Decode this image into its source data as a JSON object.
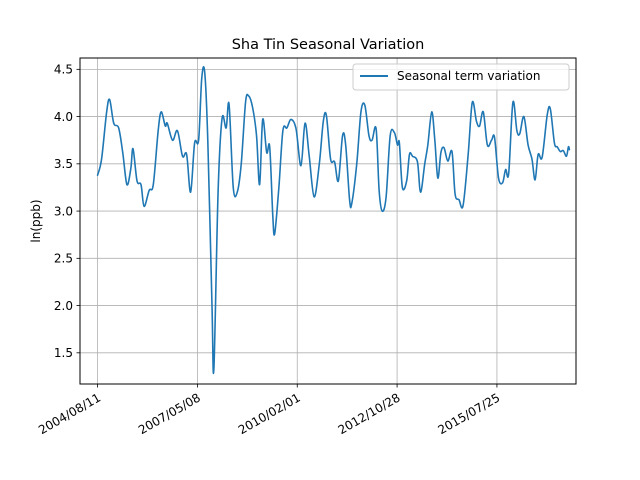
{
  "chart_data": {
    "type": "line",
    "title": "Sha Tin Seasonal Variation",
    "xlabel": "",
    "ylabel": "ln(ppb)",
    "xlim": [
      "2004/02/17",
      "2017/09/24"
    ],
    "ylim": [
      1.17,
      4.62
    ],
    "x_ticks": [
      "2004/08/11",
      "2007/05/08",
      "2010/02/01",
      "2012/10/28",
      "2015/07/25"
    ],
    "y_ticks": [
      1.5,
      2.0,
      2.5,
      3.0,
      3.5,
      4.0,
      4.5
    ],
    "y_tick_labels": [
      "1.5",
      "2.0",
      "2.5",
      "3.0",
      "3.5",
      "4.0",
      "4.5"
    ],
    "grid": true,
    "legend_position": "top-right",
    "colors": {
      "series": "#1f77b4",
      "grid": "#b0b0b0"
    },
    "series": [
      {
        "name": "Seasonal term variation",
        "points": [
          [
            "2004/08/11",
            3.38
          ],
          [
            "2004/09/20",
            3.55
          ],
          [
            "2004/11/10",
            4.05
          ],
          [
            "2004/12/10",
            4.18
          ],
          [
            "2005/01/20",
            3.93
          ],
          [
            "2005/03/10",
            3.88
          ],
          [
            "2005/04/20",
            3.62
          ],
          [
            "2005/06/01",
            3.28
          ],
          [
            "2005/07/10",
            3.45
          ],
          [
            "2005/08/01",
            3.66
          ],
          [
            "2005/09/10",
            3.32
          ],
          [
            "2005/10/20",
            3.28
          ],
          [
            "2005/11/20",
            3.05
          ],
          [
            "2006/01/10",
            3.22
          ],
          [
            "2006/02/20",
            3.28
          ],
          [
            "2006/04/10",
            3.85
          ],
          [
            "2006/05/10",
            4.05
          ],
          [
            "2006/06/20",
            3.9
          ],
          [
            "2006/07/10",
            3.93
          ],
          [
            "2006/09/01",
            3.75
          ],
          [
            "2006/10/20",
            3.85
          ],
          [
            "2006/12/10",
            3.58
          ],
          [
            "2007/01/20",
            3.6
          ],
          [
            "2007/03/01",
            3.2
          ],
          [
            "2007/04/10",
            3.72
          ],
          [
            "2007/05/20",
            3.75
          ],
          [
            "2007/06/20",
            4.4
          ],
          [
            "2007/07/20",
            4.47
          ],
          [
            "2007/08/20",
            3.75
          ],
          [
            "2007/10/01",
            2.0
          ],
          [
            "2007/10/20",
            1.33
          ],
          [
            "2007/12/01",
            3.2
          ],
          [
            "2008/01/10",
            3.98
          ],
          [
            "2008/02/20",
            3.88
          ],
          [
            "2008/03/20",
            4.13
          ],
          [
            "2008/05/01",
            3.25
          ],
          [
            "2008/06/10",
            3.2
          ],
          [
            "2008/07/20",
            3.5
          ],
          [
            "2008/09/01",
            4.15
          ],
          [
            "2008/10/01",
            4.22
          ],
          [
            "2008/11/10",
            4.1
          ],
          [
            "2008/12/20",
            3.8
          ],
          [
            "2009/01/20",
            3.28
          ],
          [
            "2009/02/20",
            3.97
          ],
          [
            "2009/04/01",
            3.62
          ],
          [
            "2009/05/01",
            3.68
          ],
          [
            "2009/06/01",
            2.95
          ],
          [
            "2009/06/20",
            2.76
          ],
          [
            "2009/08/01",
            3.25
          ],
          [
            "2009/09/10",
            3.85
          ],
          [
            "2009/10/20",
            3.88
          ],
          [
            "2009/12/01",
            3.97
          ],
          [
            "2010/01/20",
            3.87
          ],
          [
            "2010/03/10",
            3.48
          ],
          [
            "2010/04/20",
            3.93
          ],
          [
            "2010/06/01",
            3.58
          ],
          [
            "2010/07/20",
            3.15
          ],
          [
            "2010/09/10",
            3.5
          ],
          [
            "2010/10/20",
            3.95
          ],
          [
            "2010/11/20",
            4.01
          ],
          [
            "2011/01/01",
            3.55
          ],
          [
            "2011/02/10",
            3.52
          ],
          [
            "2011/03/20",
            3.32
          ],
          [
            "2011/05/01",
            3.8
          ],
          [
            "2011/06/01",
            3.7
          ],
          [
            "2011/07/10",
            3.12
          ],
          [
            "2011/08/01",
            3.08
          ],
          [
            "2011/09/20",
            3.5
          ],
          [
            "2011/11/01",
            4.05
          ],
          [
            "2011/12/10",
            4.12
          ],
          [
            "2012/01/20",
            3.8
          ],
          [
            "2012/02/20",
            3.75
          ],
          [
            "2012/04/01",
            3.87
          ],
          [
            "2012/05/01",
            3.22
          ],
          [
            "2012/06/01",
            3.0
          ],
          [
            "2012/07/10",
            3.15
          ],
          [
            "2012/08/20",
            3.8
          ],
          [
            "2012/10/01",
            3.83
          ],
          [
            "2012/11/01",
            3.7
          ],
          [
            "2012/11/20",
            3.72
          ],
          [
            "2012/12/20",
            3.25
          ],
          [
            "2013/02/01",
            3.32
          ],
          [
            "2013/03/01",
            3.6
          ],
          [
            "2013/04/01",
            3.58
          ],
          [
            "2013/05/20",
            3.52
          ],
          [
            "2013/06/20",
            3.2
          ],
          [
            "2013/08/01",
            3.5
          ],
          [
            "2013/09/01",
            3.7
          ],
          [
            "2013/10/10",
            4.05
          ],
          [
            "2013/11/10",
            3.75
          ],
          [
            "2013/12/10",
            3.35
          ],
          [
            "2014/01/10",
            3.62
          ],
          [
            "2014/02/10",
            3.67
          ],
          [
            "2014/03/20",
            3.53
          ],
          [
            "2014/05/01",
            3.63
          ],
          [
            "2014/06/01",
            3.18
          ],
          [
            "2014/07/10",
            3.12
          ],
          [
            "2014/08/20",
            3.06
          ],
          [
            "2014/10/10",
            3.6
          ],
          [
            "2014/11/20",
            4.15
          ],
          [
            "2015/01/01",
            3.95
          ],
          [
            "2015/02/01",
            3.9
          ],
          [
            "2015/03/10",
            4.05
          ],
          [
            "2015/04/20",
            3.7
          ],
          [
            "2015/06/01",
            3.75
          ],
          [
            "2015/07/01",
            3.78
          ],
          [
            "2015/08/10",
            3.35
          ],
          [
            "2015/09/20",
            3.3
          ],
          [
            "2015/10/20",
            3.44
          ],
          [
            "2015/11/20",
            3.4
          ],
          [
            "2016/01/01",
            4.15
          ],
          [
            "2016/02/10",
            3.85
          ],
          [
            "2016/03/10",
            3.82
          ],
          [
            "2016/04/20",
            4.0
          ],
          [
            "2016/06/01",
            3.7
          ],
          [
            "2016/07/10",
            3.55
          ],
          [
            "2016/08/10",
            3.33
          ],
          [
            "2016/09/10",
            3.6
          ],
          [
            "2016/10/20",
            3.57
          ],
          [
            "2016/12/10",
            4.02
          ],
          [
            "2017/01/10",
            4.08
          ],
          [
            "2017/02/20",
            3.72
          ],
          [
            "2017/03/20",
            3.68
          ],
          [
            "2017/04/20",
            3.63
          ],
          [
            "2017/05/20",
            3.64
          ],
          [
            "2017/06/20",
            3.58
          ],
          [
            "2017/07/10",
            3.68
          ],
          [
            "2017/07/20",
            3.65
          ]
        ]
      }
    ]
  }
}
